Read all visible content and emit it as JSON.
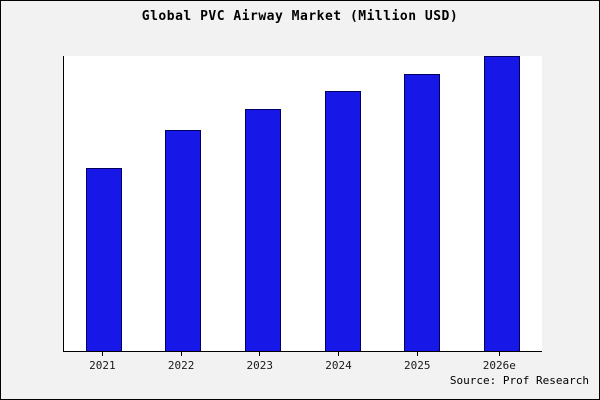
{
  "title": "Global PVC Airway Market (Million USD)",
  "source": "Source: Prof Research",
  "colors": {
    "bar_fill": "#1717e8",
    "bar_edge": "#000060",
    "background": "#f2f2f2",
    "plot_background": "#ffffff",
    "axis": "#000000"
  },
  "chart_data": {
    "type": "bar",
    "title": "Global PVC Airway Market (Million USD)",
    "categories": [
      "2021",
      "2022",
      "2023",
      "2024",
      "2025",
      "2026e"
    ],
    "values": [
      62,
      75,
      82,
      88,
      94,
      100
    ],
    "xlabel": "",
    "ylabel": "",
    "ylim": [
      0,
      100
    ],
    "grid": false,
    "legend": false,
    "y_axis_labels_visible": false,
    "source": "Source: Prof Research"
  }
}
